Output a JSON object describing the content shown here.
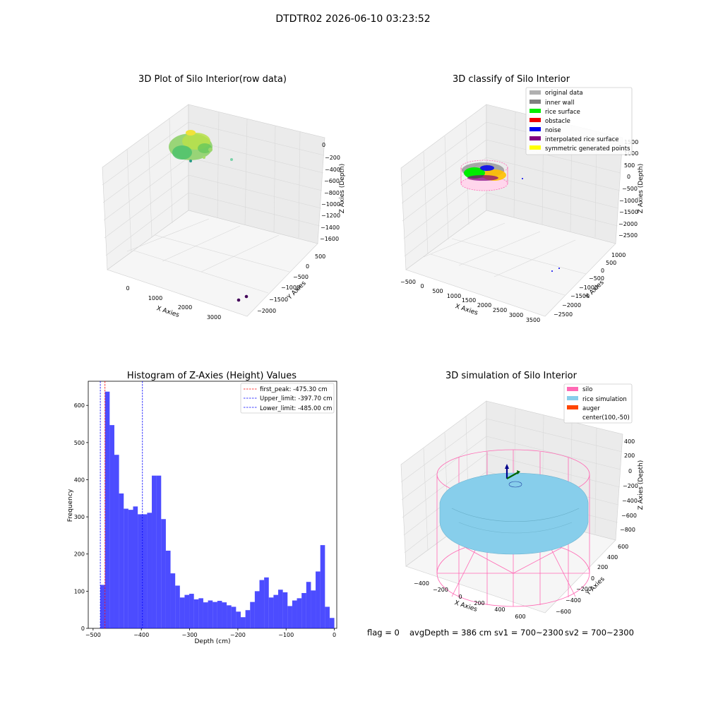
{
  "suptitle": "DTDTR02 2026-06-10 03:23:52",
  "footer": {
    "flag": "flag = 0",
    "avg_depth": "avgDepth = 386 cm",
    "sv1": "sv1 = 700~2300",
    "sv2": "sv2 = 700~2300"
  },
  "panels": {
    "raw": {
      "title": "3D Plot of Silo Interior(row data)",
      "xlabel": "X Axies",
      "ylabel": "Y Axies",
      "zlabel": "Z Axies (Depth)",
      "xticks": [
        "0",
        "1000",
        "2000",
        "3000"
      ],
      "yticks": [
        "500",
        "0",
        "−500",
        "−1000",
        "−1500",
        "−2000"
      ],
      "zticks": [
        "0",
        "−200",
        "−400",
        "−600",
        "−800",
        "−1000",
        "−1200",
        "−1400",
        "−1600"
      ]
    },
    "classify": {
      "title": "3D classify of Silo Interior",
      "xlabel": "X Axies",
      "ylabel": "Y Axies",
      "zlabel": "Z Axies (Depth)",
      "xticks": [
        "−500",
        "0",
        "500",
        "1000",
        "1500",
        "2000",
        "2500",
        "3000",
        "3500"
      ],
      "yticks": [
        "1000",
        "500",
        "0",
        "−500",
        "−1000",
        "−1500",
        "−2000",
        "−2500"
      ],
      "zticks": [
        "1500",
        "1000",
        "500",
        "0",
        "−500",
        "−1000",
        "−1500",
        "−2000",
        "−2500"
      ],
      "legend": [
        {
          "label": "original data",
          "color": "#b0b0b0"
        },
        {
          "label": "inner wall",
          "color": "#808080"
        },
        {
          "label": "rice surface",
          "color": "#00ee00"
        },
        {
          "label": "obstacle",
          "color": "#ee0000"
        },
        {
          "label": "noise",
          "color": "#0000ee"
        },
        {
          "label": "interpolated rice surface",
          "color": "#800080"
        },
        {
          "label": "symmetric generated points",
          "color": "#ffff00"
        }
      ]
    },
    "simulation": {
      "title": "3D simulation of Silo Interior",
      "xlabel": "X Axies",
      "ylabel": "Y Axies",
      "zlabel": "Z Axies (Depth)",
      "xticks": [
        "−400",
        "−200",
        "0",
        "200",
        "400",
        "600"
      ],
      "yticks": [
        "600",
        "400",
        "200",
        "0",
        "−200",
        "−400",
        "−600"
      ],
      "zticks": [
        "400",
        "200",
        "0",
        "−200",
        "−400",
        "−600",
        "−800"
      ],
      "legend": [
        {
          "label": "silo",
          "color": "#ff69b4",
          "swatch": true
        },
        {
          "label": "rice simulation",
          "color": "#87ceeb",
          "swatch": true
        },
        {
          "label": "auger",
          "color": "#ff4500",
          "swatch": true
        },
        {
          "label": "center(100,-50)",
          "color": "",
          "swatch": false
        }
      ]
    }
  },
  "chart_data": {
    "type": "bar",
    "title": "Histogram of Z-Axies (Height) Values",
    "xlabel": "Depth (cm)",
    "ylabel": "Frequency",
    "xlim": [
      -510,
      5
    ],
    "ylim": [
      0,
      665
    ],
    "xticks": [
      -500,
      -400,
      -300,
      -200,
      -100,
      0
    ],
    "yticks": [
      0,
      100,
      200,
      300,
      400,
      500,
      600
    ],
    "bin_start": -485,
    "bin_width": 9.7,
    "color": "#0000ff",
    "values": [
      117,
      637,
      547,
      467,
      363,
      322,
      319,
      328,
      307,
      307,
      311,
      411,
      411,
      294,
      209,
      148,
      115,
      83,
      90,
      93,
      78,
      81,
      70,
      75,
      71,
      74,
      70,
      62,
      58,
      45,
      30,
      49,
      71,
      100,
      130,
      137,
      83,
      90,
      104,
      97,
      60,
      75,
      81,
      95,
      125,
      102,
      153,
      224,
      58,
      28
    ],
    "lines": [
      {
        "label": "first_peak: -475.30 cm",
        "x": -475.3,
        "color": "#ff0000"
      },
      {
        "label": "Upper_limit: -397.70 cm",
        "x": -397.7,
        "color": "#0000ff"
      },
      {
        "label": "Lower_limit: -485.00 cm",
        "x": -485.0,
        "color": "#0000ff"
      }
    ],
    "legend_position": "upper right"
  }
}
